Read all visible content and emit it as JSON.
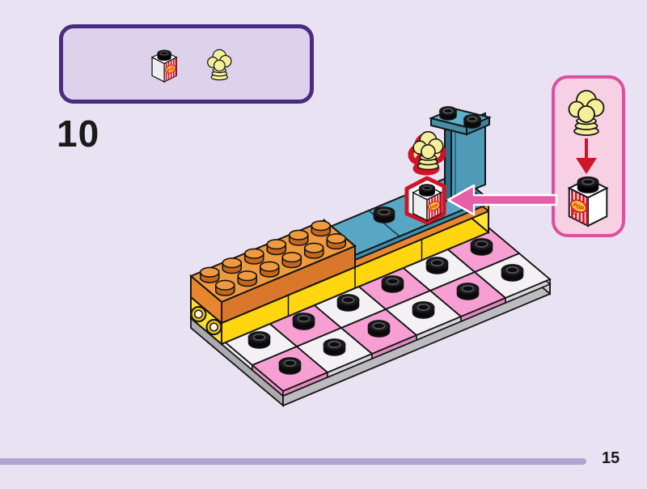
{
  "page": {
    "step_number": "10",
    "page_number": "15"
  },
  "labels": {
    "pop": "POP"
  },
  "parts_panel": {
    "parts": [
      {
        "name": "popcorn-box-printed-brick-1x1"
      },
      {
        "name": "popcorn-stack-piece"
      }
    ]
  },
  "callout": {
    "shows": "place popcorn piece onto popcorn-box brick"
  },
  "build": {
    "board_pattern": [
      [
        "white",
        "pink",
        "white",
        "pink",
        "white",
        "pink"
      ],
      [
        "pink",
        "white",
        "pink",
        "white",
        "pink",
        "white"
      ]
    ],
    "orange_brick_studs": {
      "rows": 2,
      "cols": 6
    }
  },
  "colors": {
    "page_bg": "#e9e2f2",
    "parts_box_bg": "#ddd1ec",
    "parts_box_border": "#4b2b80",
    "callout_bg": "#f7d0e4",
    "callout_border": "#dd4f9e",
    "footer_bar": "#b1a3cf",
    "text": "#1a1a1a",
    "outline": "#141414",
    "tile_pink": "#f79fd3",
    "tile_pink_front": "#e089bd",
    "tile_pink_left": "#ee96c8",
    "tile_white": "#f3f1f4",
    "tile_white_front": "#d8d6db",
    "tile_white_left": "#e9e7ec",
    "yellow": "#ffd60f",
    "yellow_left": "#ffdf2e",
    "yellow_right": "#ffe23a",
    "orange_top": "#f09a40",
    "orange_front": "#d9772a",
    "orange_side": "#e8862f",
    "orange_end": "#e07a28",
    "orange_stud_side": "#c4661f",
    "plate_front": "#e8872f",
    "plate_end": "#f09a40",
    "teal_top": "#57a7c4",
    "teal_front": "#3f8baa",
    "teal_end": "#36768f",
    "panel_main": "#4f9ab6",
    "panel_dark": "#2e6b84",
    "panel_plate_top": "#5fb0cc",
    "panel_plate_l": "#4a8ca6",
    "panel_plate_r": "#3f7f9b",
    "base_left": "#ababaf",
    "base_front": "#bcbcc0",
    "base_right": "#c9c9cd",
    "stud_black": "#1d1d20",
    "stud_ring": "#5c5c62",
    "highlight_red": "#cf1426",
    "arrow_pink": "#e560a8",
    "popcorn": "#f6ee9b",
    "brick_white": "#ffffff",
    "brick_white_shade": "#efedf0",
    "stripe_red": "#d6142c",
    "oval_fill": "#f9bf2c"
  }
}
